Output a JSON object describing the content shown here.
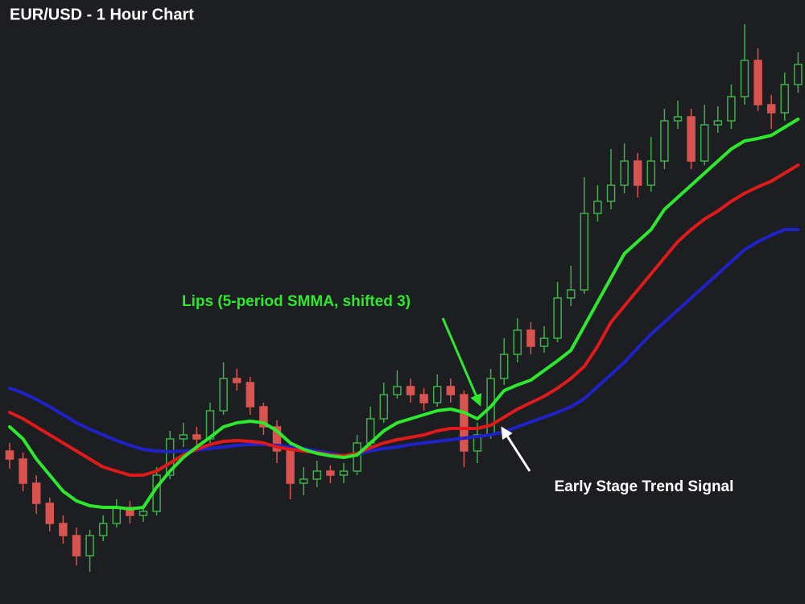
{
  "chart_data": {
    "type": "candlestick",
    "title": "EUR/USD - 1 Hour Chart",
    "up_color": "#3fae49",
    "down_color": "#d9534f",
    "open": [
      190,
      180,
      150,
      125,
      100,
      85,
      60,
      85,
      100,
      120,
      110,
      115,
      160,
      205,
      210,
      205,
      240,
      280,
      275,
      245,
      220,
      190,
      150,
      155,
      165,
      160,
      165,
      200,
      230,
      260,
      270,
      260,
      250,
      270,
      260,
      190,
      210,
      280,
      310,
      340,
      320,
      330,
      380,
      390,
      485,
      500,
      520,
      550,
      520,
      550,
      600,
      605,
      550,
      595,
      600,
      630,
      675,
      620,
      610,
      645
    ],
    "high": [
      200,
      188,
      160,
      132,
      110,
      95,
      92,
      110,
      130,
      128,
      122,
      170,
      215,
      225,
      220,
      250,
      300,
      292,
      282,
      250,
      228,
      198,
      170,
      178,
      172,
      175,
      210,
      245,
      275,
      290,
      280,
      268,
      285,
      280,
      265,
      225,
      292,
      330,
      355,
      350,
      345,
      400,
      420,
      530,
      520,
      565,
      572,
      560,
      580,
      615,
      625,
      615,
      620,
      618,
      645,
      720,
      690,
      632,
      660,
      685
    ],
    "low": [
      168,
      140,
      112,
      90,
      75,
      48,
      40,
      78,
      95,
      100,
      102,
      110,
      155,
      195,
      195,
      200,
      235,
      265,
      235,
      210,
      175,
      130,
      135,
      145,
      150,
      150,
      160,
      195,
      225,
      255,
      250,
      240,
      245,
      250,
      170,
      175,
      205,
      272,
      300,
      310,
      312,
      325,
      370,
      385,
      475,
      490,
      510,
      505,
      512,
      540,
      590,
      540,
      545,
      585,
      590,
      620,
      612,
      590,
      600,
      635
    ],
    "close": [
      180,
      150,
      125,
      100,
      85,
      60,
      85,
      100,
      120,
      110,
      115,
      160,
      205,
      210,
      205,
      240,
      280,
      275,
      245,
      220,
      190,
      150,
      155,
      165,
      160,
      165,
      200,
      230,
      260,
      270,
      260,
      250,
      270,
      260,
      190,
      210,
      280,
      310,
      340,
      320,
      330,
      380,
      390,
      485,
      500,
      520,
      550,
      520,
      550,
      600,
      605,
      550,
      595,
      600,
      630,
      675,
      620,
      610,
      645,
      670
    ],
    "series": [
      {
        "color": "#1e22c8",
        "values": [
          268,
          262,
          254,
          245,
          235,
          225,
          217,
          210,
          203,
          197,
          192,
          190,
          189,
          190,
          191,
          193,
          195,
          197,
          198,
          198,
          197,
          195,
          193,
          190,
          187,
          184,
          186,
          190,
          193,
          195,
          198,
          200,
          202,
          204,
          206,
          208,
          210,
          214,
          220,
          226,
          232,
          238,
          245,
          255,
          270,
          285,
          300,
          318,
          335,
          350,
          365,
          380,
          395,
          410,
          425,
          440,
          450,
          458,
          465,
          465
        ]
      },
      {
        "color": "#e01a1a",
        "values": [
          238,
          230,
          220,
          210,
          200,
          190,
          180,
          170,
          165,
          160,
          160,
          165,
          175,
          185,
          192,
          198,
          202,
          203,
          202,
          200,
          195,
          192,
          190,
          188,
          185,
          184,
          187,
          194,
          200,
          204,
          207,
          210,
          215,
          218,
          218,
          218,
          222,
          232,
          242,
          250,
          258,
          268,
          280,
          295,
          320,
          350,
          370,
          390,
          410,
          430,
          450,
          465,
          478,
          488,
          500,
          510,
          518,
          525,
          535,
          545
        ]
      },
      {
        "color": "#2ee82e",
        "values": [
          220,
          205,
          180,
          160,
          140,
          128,
          122,
          120,
          120,
          118,
          120,
          145,
          165,
          182,
          195,
          207,
          220,
          225,
          227,
          225,
          215,
          200,
          192,
          187,
          184,
          182,
          185,
          200,
          215,
          225,
          230,
          235,
          240,
          242,
          238,
          230,
          245,
          265,
          272,
          278,
          290,
          302,
          315,
          345,
          375,
          405,
          435,
          450,
          465,
          490,
          505,
          520,
          535,
          550,
          565,
          575,
          578,
          582,
          592,
          602
        ]
      }
    ],
    "annotations": [
      "Lips (5-period SMMA, shifted 3)",
      "Early Stage Trend Signal"
    ]
  }
}
